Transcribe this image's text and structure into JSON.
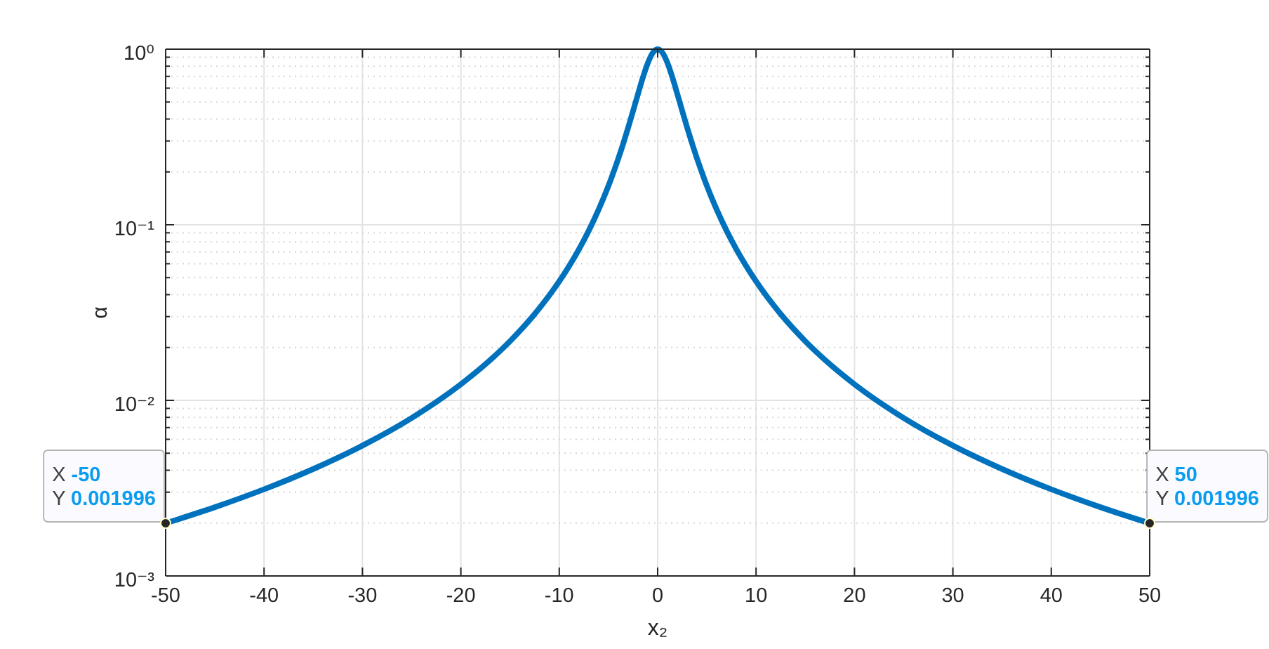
{
  "chart_data": {
    "type": "line",
    "xlabel": "x₂",
    "ylabel": "α",
    "x": [
      -50,
      -45,
      -40,
      -35,
      -30,
      -25,
      -20,
      -17.5,
      -15,
      -12.5,
      -10,
      -9,
      -8,
      -7,
      -6,
      -5,
      -4,
      -3.5,
      -3,
      -2.5,
      -2,
      -1.5,
      -1,
      -0.5,
      0,
      0.5,
      1,
      1.5,
      2,
      2.5,
      3,
      3.5,
      4,
      5,
      6,
      7,
      8,
      9,
      10,
      12.5,
      15,
      17.5,
      20,
      25,
      30,
      35,
      40,
      45,
      50
    ],
    "series": [
      {
        "color": "#0072bd",
        "values": [
          0.001996,
          0.002463,
          0.003115,
          0.004065,
          0.005525,
          0.007937,
          0.01235,
          0.01606,
          0.02174,
          0.03101,
          0.04762,
          0.05814,
          0.07246,
          0.09259,
          0.122,
          0.1667,
          0.2381,
          0.2899,
          0.3571,
          0.4444,
          0.5556,
          0.6897,
          0.8333,
          0.9524,
          1,
          0.9524,
          0.8333,
          0.6897,
          0.5556,
          0.4444,
          0.3571,
          0.2899,
          0.2381,
          0.1667,
          0.122,
          0.09259,
          0.07246,
          0.05814,
          0.04762,
          0.03101,
          0.02174,
          0.01606,
          0.01235,
          0.007937,
          0.005525,
          0.004065,
          0.003115,
          0.002463,
          0.001996
        ]
      }
    ],
    "xlim": [
      -50,
      50
    ],
    "ylim": [
      0.001,
      1
    ],
    "log": "y",
    "grid": true,
    "xticks": [
      -50,
      -40,
      -30,
      -20,
      -10,
      0,
      10,
      20,
      30,
      40,
      50
    ],
    "yticks": [
      {
        "value": 0.001,
        "label": "10⁻³"
      },
      {
        "value": 0.002,
        "label": null
      },
      {
        "value": 0.003,
        "label": null
      },
      {
        "value": 0.004,
        "label": null
      },
      {
        "value": 0.005,
        "label": null
      },
      {
        "value": 0.006,
        "label": null
      },
      {
        "value": 0.007,
        "label": null
      },
      {
        "value": 0.008,
        "label": null
      },
      {
        "value": 0.009,
        "label": null
      },
      {
        "value": 0.01,
        "label": "10⁻²"
      },
      {
        "value": 0.02,
        "label": null
      },
      {
        "value": 0.03,
        "label": null
      },
      {
        "value": 0.04,
        "label": null
      },
      {
        "value": 0.05,
        "label": null
      },
      {
        "value": 0.06,
        "label": null
      },
      {
        "value": 0.07,
        "label": null
      },
      {
        "value": 0.08,
        "label": null
      },
      {
        "value": 0.09,
        "label": null
      },
      {
        "value": 0.1,
        "label": "10⁻¹"
      },
      {
        "value": 0.2,
        "label": null
      },
      {
        "value": 0.3,
        "label": null
      },
      {
        "value": 0.4,
        "label": null
      },
      {
        "value": 0.5,
        "label": null
      },
      {
        "value": 0.6,
        "label": null
      },
      {
        "value": 0.7,
        "label": null
      },
      {
        "value": 0.8,
        "label": null
      },
      {
        "value": 0.9,
        "label": null
      },
      {
        "value": 1,
        "label": "10⁰"
      }
    ],
    "annotations": [
      {
        "text": "X -50\nY 0.001996",
        "x": -50,
        "y": 0.001996
      },
      {
        "text": "X 50\nY 0.001996",
        "x": 50,
        "y": 0.001996
      }
    ]
  }
}
